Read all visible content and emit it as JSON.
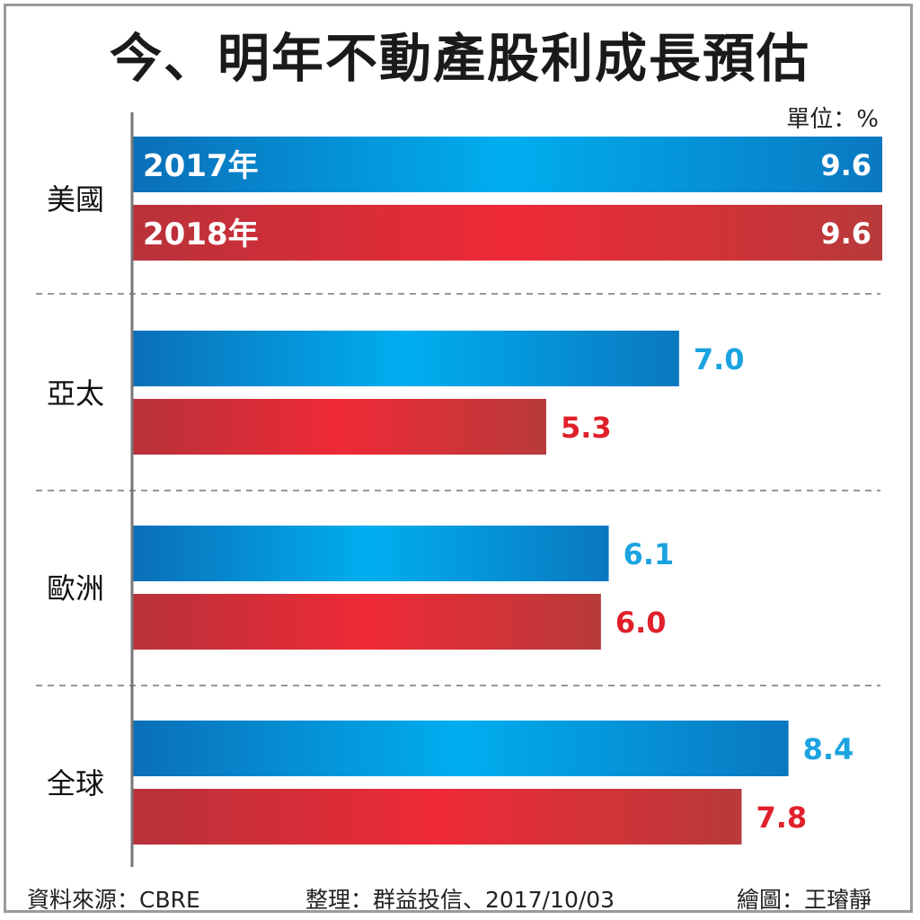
{
  "chart_data": {
    "type": "bar",
    "orientation": "horizontal",
    "title": "今、明年不動產股利成長預估",
    "unit_label": "單位：%",
    "categories": [
      "美國",
      "亞太",
      "歐洲",
      "全球"
    ],
    "series": [
      {
        "name": "2017年",
        "values": [
          9.6,
          7.0,
          6.1,
          8.4
        ],
        "color": "#0e86cf",
        "label_color": "#1aa3e0"
      },
      {
        "name": "2018年",
        "values": [
          9.6,
          5.3,
          6.0,
          7.8
        ],
        "color": "#d8282e",
        "label_color": "#e0202a"
      }
    ],
    "xlim": [
      0,
      9.6
    ],
    "grid": false,
    "legend": "inside-first-bars"
  },
  "footer": {
    "source": "資料來源：CBRE",
    "compiled": "整理：群益投信、2017/10/03",
    "drawn": "繪圖：王璿靜"
  }
}
